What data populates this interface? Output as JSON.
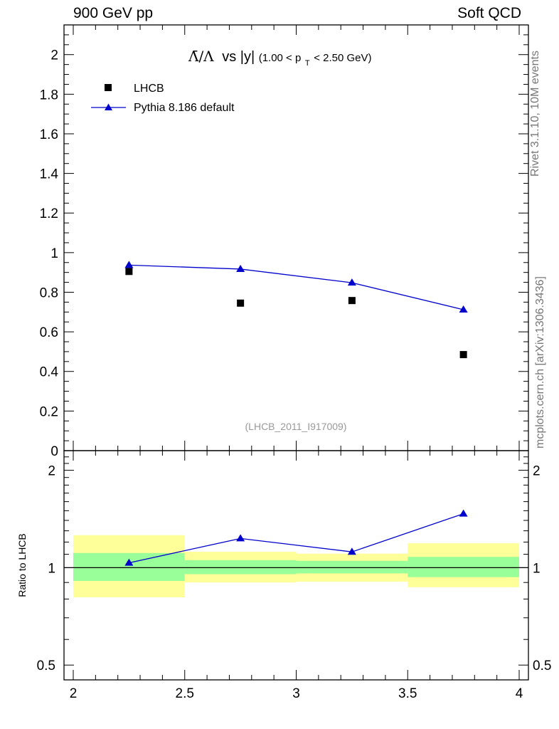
{
  "header": {
    "left": "900 GeV pp",
    "right": "Soft QCD"
  },
  "side": {
    "rivet": "Rivet 3.1.10,  10M events",
    "source": "mcplots.cern.ch [arXiv:1306.3436]"
  },
  "chart_data": {
    "type": "scatter",
    "title_ratio": "Λ̄/Λ",
    "title_vs": "vs |y|",
    "title_range_pre": "(1.00 < p",
    "title_sub": "T",
    "title_range_post": " < 2.50 GeV)",
    "watermark": "(LHCB_2011_I917009)",
    "xlim": [
      2,
      4
    ],
    "ylim": [
      0,
      2.15
    ],
    "x_ticks": [
      "2",
      "2.5",
      "3",
      "3.5",
      "4"
    ],
    "y_ticks": [
      "0",
      "0.2",
      "0.4",
      "0.6",
      "0.8",
      "1",
      "1.2",
      "1.4",
      "1.6",
      "1.8",
      "2"
    ],
    "x": [
      2.25,
      2.75,
      3.25,
      3.75
    ],
    "series": [
      {
        "name": "LHCB",
        "marker": "square",
        "color": "#000000",
        "values": [
          0.905,
          0.745,
          0.758,
          0.485
        ]
      },
      {
        "name": "Pythia 8.186 default",
        "marker": "triangle",
        "color": "#0000cc",
        "values": [
          0.937,
          0.917,
          0.848,
          0.712
        ]
      }
    ],
    "ratio": {
      "ylabel": "Ratio to LHCB",
      "ylim": [
        0.45,
        2.3
      ],
      "y_ticks": [
        "0.5",
        "1",
        "2"
      ],
      "bins": [
        [
          2.0,
          2.5
        ],
        [
          2.5,
          3.0
        ],
        [
          3.0,
          3.5
        ],
        [
          3.5,
          4.0
        ]
      ],
      "values": [
        1.035,
        1.231,
        1.119,
        1.468
      ],
      "band_inner": [
        [
          0.91,
          1.11
        ],
        [
          0.955,
          1.055
        ],
        [
          0.96,
          1.05
        ],
        [
          0.935,
          1.08
        ]
      ],
      "band_outer": [
        [
          0.81,
          1.26
        ],
        [
          0.9,
          1.12
        ],
        [
          0.905,
          1.105
        ],
        [
          0.87,
          1.19
        ]
      ],
      "inner_color": "#99ff99",
      "outer_color": "#ffff99"
    }
  }
}
